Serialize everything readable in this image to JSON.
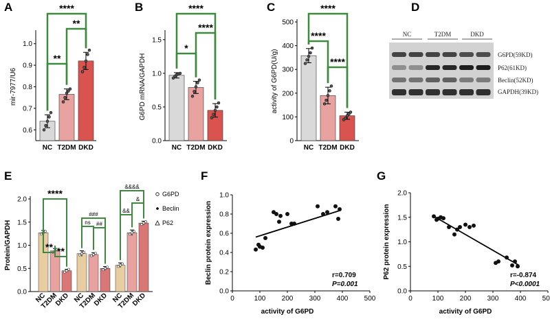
{
  "colors": {
    "nc": "#d9d9d9",
    "t2dm": "#e8a2a0",
    "dkd": "#d9534f",
    "bracket": "#3c8a3c",
    "e_g6pd": "#e9cda2",
    "e_beclin": "#e8a2a0",
    "e_p62": "#d97676"
  },
  "chart_data": [
    {
      "panel": "A",
      "type": "bar",
      "categories": [
        "NC",
        "T2DM",
        "DKD"
      ],
      "values": [
        0.64,
        0.765,
        0.92
      ],
      "errors": [
        0.03,
        0.025,
        0.04
      ],
      "points": [
        [
          0.6,
          0.62,
          0.64,
          0.66,
          0.68
        ],
        [
          0.73,
          0.75,
          0.77,
          0.78,
          0.79
        ],
        [
          0.87,
          0.89,
          0.92,
          0.95,
          0.97
        ]
      ],
      "ylabel": "mir-7977/U6",
      "ylim": [
        0.55,
        1.05
      ],
      "ticks": [
        "0.6",
        "0.7",
        "0.8",
        "0.9",
        "1.0"
      ],
      "tickvals": [
        0.6,
        0.7,
        0.8,
        0.9,
        1.0
      ],
      "significance": [
        {
          "from": 0,
          "to": 1,
          "label": "**"
        },
        {
          "from": 1,
          "to": 2,
          "label": "**"
        },
        {
          "from": 0,
          "to": 2,
          "label": "****"
        }
      ]
    },
    {
      "panel": "B",
      "type": "bar",
      "categories": [
        "NC",
        "T2DM",
        "DKD"
      ],
      "values": [
        0.97,
        0.79,
        0.45
      ],
      "errors": [
        0.04,
        0.09,
        0.1
      ],
      "points": [
        [
          0.93,
          0.96,
          0.98,
          0.99,
          1.0
        ],
        [
          0.66,
          0.73,
          0.8,
          0.86,
          0.9
        ],
        [
          0.34,
          0.39,
          0.45,
          0.5,
          0.56
        ]
      ],
      "ylabel": "G6PD mRNA/GAPDH",
      "ylim": [
        0,
        1.6
      ],
      "ticks": [
        "0.0",
        "0.5",
        "1.0",
        "1.5"
      ],
      "tickvals": [
        0,
        0.5,
        1.0,
        1.5
      ],
      "significance": [
        {
          "from": 0,
          "to": 1,
          "label": "*"
        },
        {
          "from": 1,
          "to": 2,
          "label": "****"
        },
        {
          "from": 0,
          "to": 2,
          "label": "****"
        }
      ]
    },
    {
      "panel": "C",
      "type": "bar",
      "categories": [
        "NC",
        "T2DM",
        "DKD"
      ],
      "values": [
        358,
        190,
        105
      ],
      "errors": [
        30,
        35,
        15
      ],
      "points": [
        [
          325,
          340,
          355,
          370,
          390
        ],
        [
          155,
          170,
          190,
          210,
          230
        ],
        [
          88,
          95,
          105,
          112,
          120
        ]
      ],
      "ylabel": "activity of G6PD(U/g)",
      "ylim": [
        0,
        500
      ],
      "ticks": [
        "0",
        "100",
        "200",
        "300",
        "400",
        "500"
      ],
      "tickvals": [
        0,
        100,
        200,
        300,
        400,
        500
      ],
      "significance": [
        {
          "from": 0,
          "to": 1,
          "label": "****"
        },
        {
          "from": 1,
          "to": 2,
          "label": "****"
        },
        {
          "from": 0,
          "to": 2,
          "label": "****"
        }
      ]
    },
    {
      "panel": "E",
      "type": "grouped-bar",
      "groups": [
        "G6PD",
        "Beclin",
        "P62"
      ],
      "categories": [
        "NC",
        "T2DM",
        "DKD"
      ],
      "series": [
        {
          "name": "G6PD",
          "values": [
            1.27,
            0.88,
            0.45
          ],
          "errors": [
            0.05,
            0.05,
            0.03
          ]
        },
        {
          "name": "Beclin",
          "values": [
            0.82,
            0.8,
            0.5
          ],
          "errors": [
            0.06,
            0.04,
            0.04
          ]
        },
        {
          "name": "P62",
          "values": [
            0.57,
            1.27,
            1.48
          ],
          "errors": [
            0.05,
            0.06,
            0.04
          ]
        }
      ],
      "ylabel": "Protein/GAPDH",
      "ylim": [
        0,
        2.0
      ],
      "ticks": [
        "0.0",
        "0.5",
        "1.0",
        "1.5",
        "2.0"
      ],
      "tickvals": [
        0,
        0.5,
        1.0,
        1.5,
        2.0
      ],
      "legend": [
        "G6PD",
        "Beclin",
        "P62"
      ],
      "significance": [
        {
          "group": 0,
          "from": 0,
          "to": 1,
          "label": "**"
        },
        {
          "group": 0,
          "from": 1,
          "to": 2,
          "label": "**"
        },
        {
          "group": 0,
          "from": 0,
          "to": 2,
          "label": "****"
        },
        {
          "group": 1,
          "from": 0,
          "to": 1,
          "label": "ns"
        },
        {
          "group": 1,
          "from": 1,
          "to": 2,
          "label": "##"
        },
        {
          "group": 1,
          "from": 0,
          "to": 2,
          "label": "###"
        },
        {
          "group": 2,
          "from": 0,
          "to": 1,
          "label": "&&"
        },
        {
          "group": 2,
          "from": 1,
          "to": 2,
          "label": "&"
        },
        {
          "group": 2,
          "from": 0,
          "to": 2,
          "label": "&&&&"
        }
      ]
    },
    {
      "panel": "F",
      "type": "scatter",
      "x": [
        85,
        95,
        100,
        110,
        120,
        150,
        160,
        170,
        175,
        200,
        215,
        225,
        310,
        330,
        345,
        375,
        385,
        390
      ],
      "y": [
        0.43,
        0.48,
        0.46,
        0.45,
        0.55,
        0.82,
        0.8,
        0.72,
        0.78,
        0.8,
        0.7,
        0.7,
        0.88,
        0.8,
        0.82,
        0.88,
        0.75,
        0.85
      ],
      "fit": {
        "x": [
          85,
          395
        ],
        "y": [
          0.56,
          0.84
        ]
      },
      "xlabel": "activity of G6PD",
      "ylabel": "Beclin protein expression",
      "xlim": [
        0,
        500
      ],
      "ylim": [
        0,
        1.0
      ],
      "xticks": [
        "0",
        "100",
        "200",
        "300",
        "400",
        "500"
      ],
      "xtickvals": [
        0,
        100,
        200,
        300,
        400,
        500
      ],
      "yticks": [
        "0.0",
        "0.2",
        "0.4",
        "0.6",
        "0.8",
        "1.0"
      ],
      "ytickvals": [
        0,
        0.2,
        0.4,
        0.6,
        0.8,
        1.0
      ],
      "r_text": "r=0.709",
      "p_text": "P=0.001"
    },
    {
      "panel": "G",
      "type": "scatter",
      "x": [
        85,
        95,
        100,
        110,
        120,
        140,
        160,
        170,
        180,
        200,
        215,
        230,
        310,
        320,
        350,
        370,
        380,
        390
      ],
      "y": [
        1.52,
        1.45,
        1.47,
        1.5,
        1.48,
        1.3,
        1.15,
        1.25,
        1.3,
        1.35,
        1.3,
        1.33,
        0.57,
        0.6,
        0.68,
        0.52,
        0.6,
        0.5
      ],
      "fit": {
        "x": [
          85,
          395
        ],
        "y": [
          1.52,
          0.52
        ]
      },
      "xlabel": "activity of G6PD",
      "ylabel": "P62 protein expression",
      "xlim": [
        0,
        500
      ],
      "ylim": [
        0,
        2.0
      ],
      "xticks": [
        "0",
        "100",
        "200",
        "300",
        "400",
        "500"
      ],
      "xtickvals": [
        0,
        100,
        200,
        300,
        400,
        500
      ],
      "yticks": [
        "0.0",
        "0.5",
        "1.0",
        "1.5",
        "2.0"
      ],
      "ytickvals": [
        0,
        0.5,
        1.0,
        1.5,
        2.0
      ],
      "r_text": "r=-0.874",
      "p_text": "P<0.0001"
    }
  ],
  "panel_D": {
    "label": "D",
    "columns": [
      "NC",
      "T2DM",
      "DKD"
    ],
    "bands": [
      "G6PD(59KD)",
      "P62(61KD)",
      "Beclin(52KD)",
      "GAPDH(39KD)"
    ]
  },
  "panel_labels": [
    "A",
    "B",
    "C",
    "D",
    "E",
    "F",
    "G"
  ]
}
